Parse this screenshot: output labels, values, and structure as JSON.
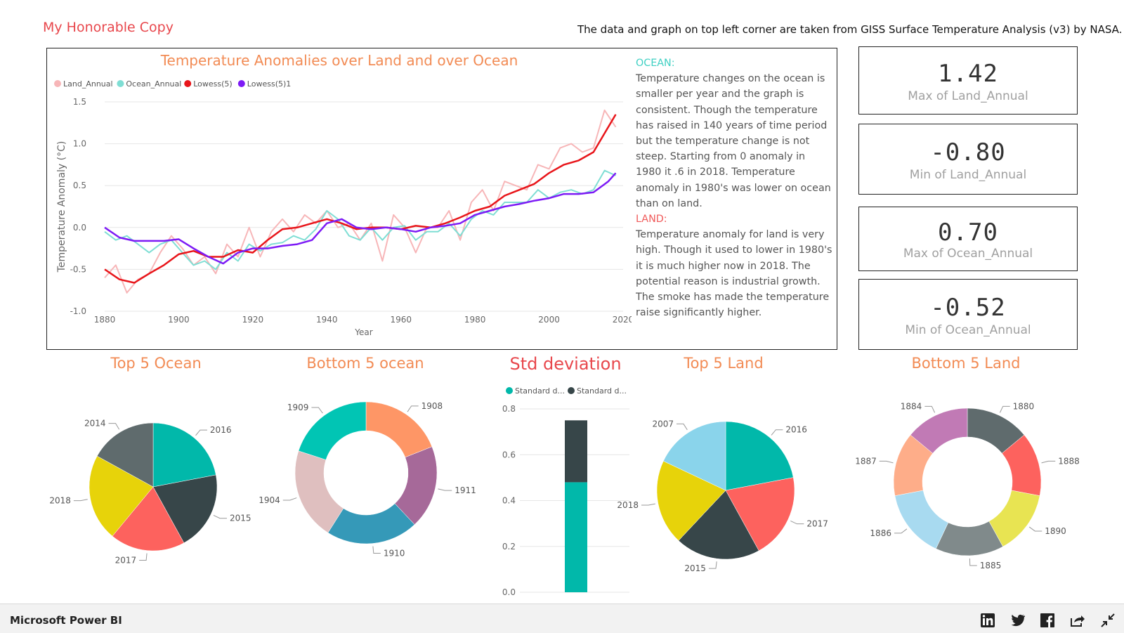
{
  "header": {
    "title": "My Honorable Copy",
    "source_note": "The data and graph on top left corner are taken from GISS Surface Temperature Analysis (v3) by NASA."
  },
  "text_panel": {
    "ocean_heading": "OCEAN:",
    "ocean_text": "Temperature changes on the ocean is smaller per year and the graph is consistent. Though the temperature has raised in 140 years of time period but the temperature change is not steep. Starting from 0 anomaly in 1980 it .6 in 2018. Temperature anomaly in 1980's was lower on ocean than on land.",
    "land_heading": "LAND:",
    "land_text": "Temperature anomaly for land is very high. Though it used to lower in 1980's it is much higher now in 2018. The potential reason is industrial growth. The smoke has made the temperature raise significantly higher."
  },
  "kpis": [
    {
      "value": "1.42",
      "label": "Max of Land_Annual"
    },
    {
      "value": "-0.80",
      "label": "Min of Land_Annual"
    },
    {
      "value": "0.70",
      "label": "Max of Ocean_Annual"
    },
    {
      "value": "-0.52",
      "label": "Min of Ocean_Annual"
    }
  ],
  "footer": {
    "brand": "Microsoft Power BI",
    "icons": [
      "linkedin-icon",
      "twitter-icon",
      "facebook-icon",
      "share-icon",
      "fullscreen-exit-icon"
    ]
  },
  "chart_data": [
    {
      "id": "line",
      "type": "line",
      "title": "Temperature Anomalies over Land and over Ocean",
      "xlabel": "Year",
      "ylabel": "Temperature Anomaly (°C)",
      "xlim": [
        1880,
        2020
      ],
      "ylim": [
        -1.0,
        1.5
      ],
      "xticks": [
        1880,
        1900,
        1920,
        1940,
        1960,
        1980,
        2000,
        2020
      ],
      "yticks": [
        -1.0,
        -0.5,
        0.0,
        0.5,
        1.0,
        1.5
      ],
      "ytick_labels": [
        "-1.0",
        "-0.5",
        "0.0",
        "0.5",
        "1.0",
        "1.5"
      ],
      "grid": true,
      "series": [
        {
          "name": "Land_Annual",
          "color": "#f7b6b8",
          "x": [
            1880,
            1883,
            1886,
            1889,
            1892,
            1895,
            1898,
            1901,
            1904,
            1907,
            1910,
            1913,
            1916,
            1919,
            1922,
            1925,
            1928,
            1931,
            1934,
            1937,
            1940,
            1943,
            1946,
            1949,
            1952,
            1955,
            1958,
            1961,
            1964,
            1967,
            1970,
            1973,
            1976,
            1979,
            1982,
            1985,
            1988,
            1991,
            1994,
            1997,
            2000,
            2003,
            2006,
            2009,
            2012,
            2015,
            2018
          ],
          "y": [
            -0.6,
            -0.45,
            -0.78,
            -0.62,
            -0.55,
            -0.3,
            -0.1,
            -0.25,
            -0.45,
            -0.35,
            -0.55,
            -0.2,
            -0.35,
            0.0,
            -0.35,
            -0.05,
            0.1,
            -0.05,
            0.15,
            0.05,
            0.2,
            0.0,
            0.05,
            -0.15,
            0.05,
            -0.4,
            0.15,
            0.0,
            -0.3,
            0.0,
            0.0,
            0.2,
            -0.15,
            0.3,
            0.45,
            0.2,
            0.55,
            0.5,
            0.45,
            0.75,
            0.7,
            0.95,
            1.0,
            0.9,
            0.95,
            1.4,
            1.2
          ]
        },
        {
          "name": "Ocean_Annual",
          "color": "#7fded4",
          "x": [
            1880,
            1883,
            1886,
            1889,
            1892,
            1895,
            1898,
            1901,
            1904,
            1907,
            1910,
            1913,
            1916,
            1919,
            1922,
            1925,
            1928,
            1931,
            1934,
            1937,
            1940,
            1943,
            1946,
            1949,
            1952,
            1955,
            1958,
            1961,
            1964,
            1967,
            1970,
            1973,
            1976,
            1979,
            1982,
            1985,
            1988,
            1991,
            1994,
            1997,
            2000,
            2003,
            2006,
            2009,
            2012,
            2015,
            2018
          ],
          "y": [
            -0.05,
            -0.15,
            -0.1,
            -0.2,
            -0.3,
            -0.2,
            -0.15,
            -0.3,
            -0.45,
            -0.4,
            -0.5,
            -0.3,
            -0.4,
            -0.2,
            -0.28,
            -0.2,
            -0.18,
            -0.1,
            -0.15,
            -0.02,
            0.2,
            0.1,
            -0.1,
            -0.15,
            0.0,
            -0.15,
            0.0,
            0.02,
            -0.15,
            -0.05,
            -0.05,
            0.05,
            -0.1,
            0.1,
            0.2,
            0.15,
            0.3,
            0.3,
            0.3,
            0.45,
            0.35,
            0.42,
            0.45,
            0.4,
            0.45,
            0.68,
            0.62
          ]
        },
        {
          "name": "Lowess(5)",
          "color": "#e8151a",
          "x": [
            1880,
            1884,
            1888,
            1892,
            1896,
            1900,
            1904,
            1908,
            1912,
            1916,
            1920,
            1924,
            1928,
            1932,
            1936,
            1940,
            1944,
            1948,
            1952,
            1956,
            1960,
            1964,
            1968,
            1972,
            1976,
            1980,
            1984,
            1988,
            1992,
            1996,
            2000,
            2004,
            2008,
            2012,
            2016,
            2018
          ],
          "y": [
            -0.5,
            -0.62,
            -0.66,
            -0.55,
            -0.45,
            -0.32,
            -0.28,
            -0.35,
            -0.35,
            -0.27,
            -0.3,
            -0.15,
            -0.02,
            0.0,
            0.05,
            0.1,
            0.05,
            -0.02,
            0.0,
            0.0,
            -0.02,
            0.02,
            0.0,
            0.05,
            0.12,
            0.2,
            0.25,
            0.38,
            0.45,
            0.52,
            0.65,
            0.75,
            0.8,
            0.9,
            1.2,
            1.35
          ]
        },
        {
          "name": "Lowess(5)1",
          "color": "#7d1bf5",
          "x": [
            1880,
            1884,
            1888,
            1892,
            1896,
            1900,
            1904,
            1908,
            1912,
            1916,
            1920,
            1924,
            1928,
            1932,
            1936,
            1940,
            1944,
            1948,
            1952,
            1956,
            1960,
            1964,
            1968,
            1972,
            1976,
            1980,
            1984,
            1988,
            1992,
            1996,
            2000,
            2004,
            2008,
            2012,
            2016,
            2018
          ],
          "y": [
            0.0,
            -0.12,
            -0.16,
            -0.16,
            -0.16,
            -0.14,
            -0.25,
            -0.35,
            -0.43,
            -0.3,
            -0.25,
            -0.25,
            -0.22,
            -0.2,
            -0.15,
            0.05,
            0.1,
            0.0,
            -0.02,
            0.0,
            -0.02,
            -0.05,
            0.0,
            0.02,
            0.05,
            0.15,
            0.2,
            0.25,
            0.28,
            0.32,
            0.35,
            0.4,
            0.4,
            0.42,
            0.55,
            0.65
          ]
        }
      ]
    },
    {
      "id": "top5ocean",
      "type": "pie",
      "title": "Top 5 Ocean",
      "labels": [
        "2016",
        "2015",
        "2017",
        "2018",
        "2014"
      ],
      "values": [
        22,
        20,
        19,
        22,
        17
      ],
      "colors": [
        "#01b8aa",
        "#374649",
        "#fd625e",
        "#e7d30a",
        "#5f6b6d"
      ]
    },
    {
      "id": "bottom5ocean",
      "type": "pie",
      "donut": true,
      "title": "Bottom 5 ocean",
      "labels": [
        "1908",
        "1911",
        "1910",
        "1904",
        "1909"
      ],
      "values": [
        19,
        19,
        21,
        21,
        20
      ],
      "colors": [
        "#fe9666",
        "#a66999",
        "#3599b8",
        "#dfbfbf",
        "#01c5b4"
      ]
    },
    {
      "id": "stddev",
      "type": "bar",
      "stacked": true,
      "title": "Std deviation",
      "categories": [
        ""
      ],
      "series": [
        {
          "name": "Standard d...",
          "values": [
            0.48
          ],
          "color": "#01b8aa"
        },
        {
          "name": "Standard d...",
          "values": [
            0.27
          ],
          "color": "#374649"
        }
      ],
      "ylim": [
        0,
        0.8
      ],
      "yticks": [
        0.0,
        0.2,
        0.4,
        0.6,
        0.8
      ],
      "ytick_labels": [
        "0.0",
        "0.2",
        "0.4",
        "0.6",
        "0.8"
      ]
    },
    {
      "id": "top5land",
      "type": "pie",
      "title": "Top 5 Land",
      "labels": [
        "2016",
        "2017",
        "2015",
        "2018",
        "2007"
      ],
      "values": [
        22,
        20,
        20,
        20,
        18
      ],
      "colors": [
        "#01b8aa",
        "#fd625e",
        "#374649",
        "#e7d30a",
        "#8ad4eb"
      ]
    },
    {
      "id": "bottom5land",
      "type": "pie",
      "donut": true,
      "title": "Bottom 5 Land",
      "labels": [
        "1880",
        "1888",
        "1890",
        "1885",
        "1886",
        "1887",
        "1884"
      ],
      "values": [
        14,
        14,
        14,
        15,
        15,
        14,
        14
      ],
      "colors": [
        "#5f6b6d",
        "#fd625e",
        "#e8e452",
        "#808a8b",
        "#a8daf0",
        "#fead89",
        "#c17ab5"
      ]
    }
  ]
}
